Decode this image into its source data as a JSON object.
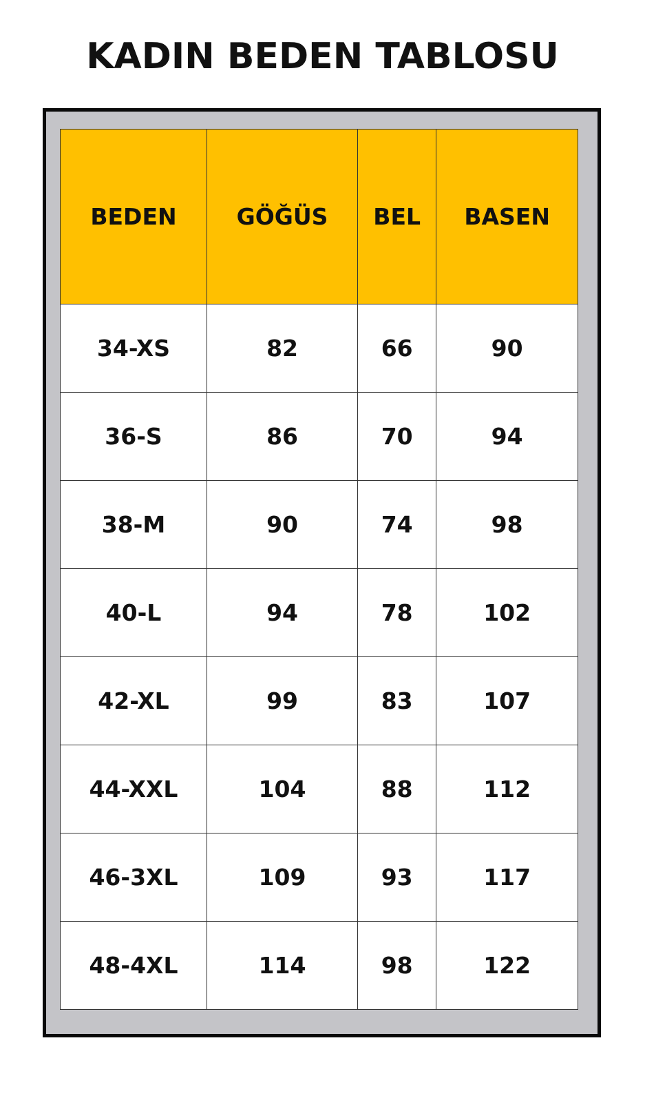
{
  "title": "KADIN BEDEN TABLOSU",
  "colors": {
    "header_bg": "#ffc000",
    "frame_bg": "#c4c4c8",
    "frame_border": "#0a0a0a"
  },
  "table": {
    "headers": [
      "BEDEN",
      "GÖĞÜS",
      "BEL",
      "BASEN"
    ],
    "rows": [
      [
        "34-XS",
        "82",
        "66",
        "90"
      ],
      [
        "36-S",
        "86",
        "70",
        "94"
      ],
      [
        "38-M",
        "90",
        "74",
        "98"
      ],
      [
        "40-L",
        "94",
        "78",
        "102"
      ],
      [
        "42-XL",
        "99",
        "83",
        "107"
      ],
      [
        "44-XXL",
        "104",
        "88",
        "112"
      ],
      [
        "46-3XL",
        "109",
        "93",
        "117"
      ],
      [
        "48-4XL",
        "114",
        "98",
        "122"
      ]
    ]
  }
}
